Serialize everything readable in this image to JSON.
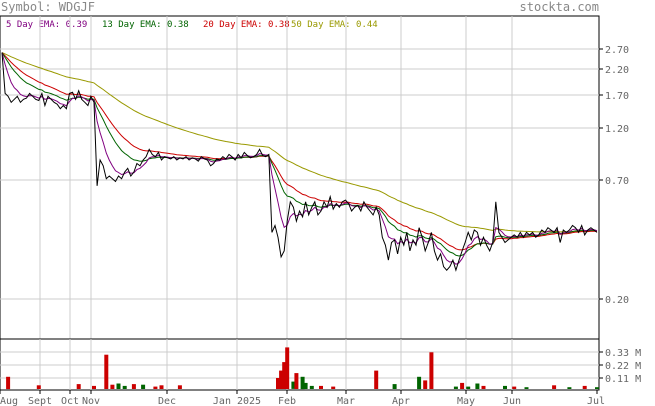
{
  "header": {
    "symbol_text": "Symbol: WDGJF",
    "site": "stockta.com"
  },
  "legend": [
    {
      "label": "5 Day EMA:",
      "value": "0.39",
      "color": "#800080"
    },
    {
      "label": "13 Day EMA:",
      "value": "0.38",
      "color": "#006400"
    },
    {
      "label": "20 Day EMA:",
      "value": "0.38",
      "color": "#cc0000"
    },
    {
      "label": "50 Day EMA:",
      "value": "0.44",
      "color": "#999900"
    }
  ],
  "colors": {
    "price": "#000000",
    "grid": "#cccccc",
    "vol_down": "#cc0000",
    "vol_up": "#006400",
    "frame": "#000000"
  },
  "chart_data": {
    "type": "line",
    "scale": "log",
    "ylim": [
      0.13,
      2.9
    ],
    "yticks": [
      "2.70",
      "2.20",
      "1.70",
      "1.20",
      "0.70",
      "0.20"
    ],
    "xticks": [
      "Aug",
      "Sept",
      "Oct",
      "Nov",
      "Dec",
      "Jan 2025",
      "Feb",
      "Mar",
      "Apr",
      "May",
      "Jun",
      "Jul"
    ],
    "price": [
      2.6,
      1.7,
      1.65,
      1.55,
      1.6,
      1.65,
      1.55,
      1.6,
      1.62,
      1.7,
      1.65,
      1.6,
      1.58,
      1.7,
      1.5,
      1.65,
      1.6,
      1.55,
      1.52,
      1.45,
      1.5,
      1.45,
      1.7,
      1.72,
      1.6,
      1.75,
      1.6,
      1.55,
      1.5,
      1.65,
      1.55,
      0.65,
      0.85,
      0.8,
      0.7,
      0.72,
      0.7,
      0.68,
      0.72,
      0.7,
      0.75,
      0.78,
      0.72,
      0.75,
      0.82,
      0.8,
      0.85,
      0.88,
      0.95,
      0.9,
      0.88,
      0.92,
      0.85,
      0.88,
      0.87,
      0.86,
      0.88,
      0.85,
      0.87,
      0.86,
      0.88,
      0.85,
      0.87,
      0.86,
      0.84,
      0.88,
      0.86,
      0.85,
      0.8,
      0.82,
      0.86,
      0.85,
      0.88,
      0.86,
      0.9,
      0.88,
      0.85,
      0.9,
      0.87,
      0.92,
      0.89,
      0.87,
      0.88,
      0.9,
      0.95,
      0.89,
      0.88,
      0.9,
      0.4,
      0.43,
      0.38,
      0.31,
      0.33,
      0.45,
      0.55,
      0.52,
      0.45,
      0.5,
      0.47,
      0.55,
      0.48,
      0.52,
      0.55,
      0.48,
      0.5,
      0.55,
      0.52,
      0.58,
      0.51,
      0.54,
      0.52,
      0.55,
      0.56,
      0.54,
      0.5,
      0.52,
      0.53,
      0.5,
      0.55,
      0.52,
      0.5,
      0.48,
      0.52,
      0.48,
      0.38,
      0.35,
      0.3,
      0.36,
      0.37,
      0.32,
      0.38,
      0.35,
      0.4,
      0.33,
      0.37,
      0.35,
      0.42,
      0.38,
      0.33,
      0.36,
      0.4,
      0.33,
      0.3,
      0.32,
      0.28,
      0.27,
      0.28,
      0.3,
      0.27,
      0.3,
      0.33,
      0.36,
      0.4,
      0.37,
      0.41,
      0.4,
      0.35,
      0.38,
      0.35,
      0.33,
      0.36,
      0.55,
      0.4,
      0.38,
      0.36,
      0.37,
      0.38,
      0.39,
      0.38,
      0.4,
      0.38,
      0.4,
      0.39,
      0.4,
      0.38,
      0.39,
      0.41,
      0.4,
      0.42,
      0.41,
      0.4,
      0.42,
      0.36,
      0.41,
      0.4,
      0.41,
      0.43,
      0.42,
      0.4,
      0.43,
      0.39,
      0.41,
      0.42,
      0.41,
      0.4
    ],
    "series": [
      {
        "name": "5 Day EMA",
        "span": 5
      },
      {
        "name": "13 Day EMA",
        "span": 13
      },
      {
        "name": "20 Day EMA",
        "span": 20
      },
      {
        "name": "50 Day EMA",
        "span": 50
      }
    ],
    "volume": {
      "yticks": [
        "0.33 M",
        "0.22 M",
        "0.11 M"
      ],
      "ylim": [
        0,
        0.4
      ],
      "bars": [
        {
          "i": 2,
          "v": 0.1,
          "dir": "down"
        },
        {
          "i": 12,
          "v": 0.03,
          "dir": "down"
        },
        {
          "i": 25,
          "v": 0.04,
          "dir": "down"
        },
        {
          "i": 30,
          "v": 0.025,
          "dir": "down"
        },
        {
          "i": 34,
          "v": 0.28,
          "dir": "down"
        },
        {
          "i": 36,
          "v": 0.035,
          "dir": "down"
        },
        {
          "i": 38,
          "v": 0.045,
          "dir": "up"
        },
        {
          "i": 40,
          "v": 0.025,
          "dir": "up"
        },
        {
          "i": 43,
          "v": 0.04,
          "dir": "down"
        },
        {
          "i": 46,
          "v": 0.035,
          "dir": "up"
        },
        {
          "i": 50,
          "v": 0.02,
          "dir": "down"
        },
        {
          "i": 52,
          "v": 0.03,
          "dir": "down"
        },
        {
          "i": 58,
          "v": 0.03,
          "dir": "down"
        },
        {
          "i": 90,
          "v": 0.09,
          "dir": "down"
        },
        {
          "i": 91,
          "v": 0.15,
          "dir": "down"
        },
        {
          "i": 92,
          "v": 0.22,
          "dir": "down"
        },
        {
          "i": 93,
          "v": 0.34,
          "dir": "down"
        },
        {
          "i": 95,
          "v": 0.06,
          "dir": "up"
        },
        {
          "i": 96,
          "v": 0.13,
          "dir": "down"
        },
        {
          "i": 98,
          "v": 0.1,
          "dir": "up"
        },
        {
          "i": 99,
          "v": 0.05,
          "dir": "up"
        },
        {
          "i": 101,
          "v": 0.025,
          "dir": "up"
        },
        {
          "i": 104,
          "v": 0.025,
          "dir": "down"
        },
        {
          "i": 108,
          "v": 0.02,
          "dir": "down"
        },
        {
          "i": 122,
          "v": 0.15,
          "dir": "down"
        },
        {
          "i": 128,
          "v": 0.04,
          "dir": "up"
        },
        {
          "i": 136,
          "v": 0.1,
          "dir": "up"
        },
        {
          "i": 138,
          "v": 0.07,
          "dir": "down"
        },
        {
          "i": 140,
          "v": 0.3,
          "dir": "down"
        },
        {
          "i": 148,
          "v": 0.02,
          "dir": "up"
        },
        {
          "i": 150,
          "v": 0.05,
          "dir": "down"
        },
        {
          "i": 152,
          "v": 0.02,
          "dir": "up"
        },
        {
          "i": 155,
          "v": 0.045,
          "dir": "up"
        },
        {
          "i": 157,
          "v": 0.025,
          "dir": "down"
        },
        {
          "i": 164,
          "v": 0.025,
          "dir": "up"
        },
        {
          "i": 167,
          "v": 0.02,
          "dir": "down"
        },
        {
          "i": 171,
          "v": 0.015,
          "dir": "up"
        },
        {
          "i": 180,
          "v": 0.03,
          "dir": "down"
        },
        {
          "i": 185,
          "v": 0.015,
          "dir": "up"
        },
        {
          "i": 190,
          "v": 0.025,
          "dir": "down"
        },
        {
          "i": 194,
          "v": 0.015,
          "dir": "up"
        }
      ]
    }
  }
}
